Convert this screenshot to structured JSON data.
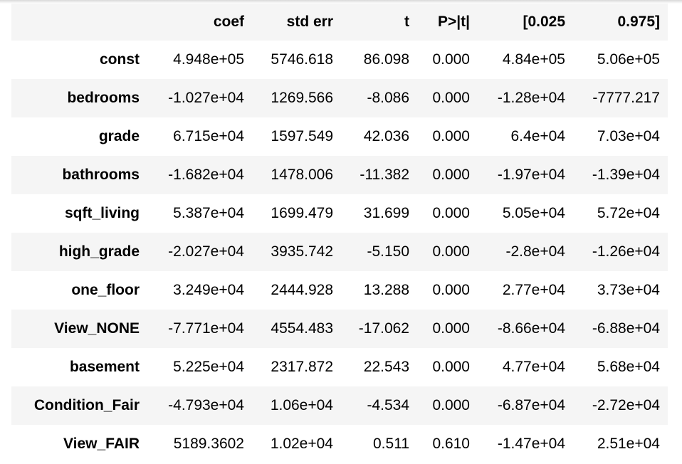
{
  "table": {
    "columns": [
      "",
      "coef",
      "std err",
      "t",
      "P>|t|",
      "[0.025",
      "0.975]"
    ],
    "rows": [
      {
        "name": "const",
        "values": [
          "4.948e+05",
          "5746.618",
          "86.098",
          "0.000",
          "4.84e+05",
          "5.06e+05"
        ]
      },
      {
        "name": "bedrooms",
        "values": [
          "-1.027e+04",
          "1269.566",
          "-8.086",
          "0.000",
          "-1.28e+04",
          "-7777.217"
        ]
      },
      {
        "name": "grade",
        "values": [
          "6.715e+04",
          "1597.549",
          "42.036",
          "0.000",
          "6.4e+04",
          "7.03e+04"
        ]
      },
      {
        "name": "bathrooms",
        "values": [
          "-1.682e+04",
          "1478.006",
          "-11.382",
          "0.000",
          "-1.97e+04",
          "-1.39e+04"
        ]
      },
      {
        "name": "sqft_living",
        "values": [
          "5.387e+04",
          "1699.479",
          "31.699",
          "0.000",
          "5.05e+04",
          "5.72e+04"
        ]
      },
      {
        "name": "high_grade",
        "values": [
          "-2.027e+04",
          "3935.742",
          "-5.150",
          "0.000",
          "-2.8e+04",
          "-1.26e+04"
        ]
      },
      {
        "name": "one_floor",
        "values": [
          "3.249e+04",
          "2444.928",
          "13.288",
          "0.000",
          "2.77e+04",
          "3.73e+04"
        ]
      },
      {
        "name": "View_NONE",
        "values": [
          "-7.771e+04",
          "4554.483",
          "-17.062",
          "0.000",
          "-8.66e+04",
          "-6.88e+04"
        ]
      },
      {
        "name": "basement",
        "values": [
          "5.225e+04",
          "2317.872",
          "22.543",
          "0.000",
          "4.77e+04",
          "5.68e+04"
        ]
      },
      {
        "name": "Condition_Fair",
        "values": [
          "-4.793e+04",
          "1.06e+04",
          "-4.534",
          "0.000",
          "-6.87e+04",
          "-2.72e+04"
        ]
      },
      {
        "name": "View_FAIR",
        "values": [
          "5189.3602",
          "1.02e+04",
          "0.511",
          "0.610",
          "-1.47e+04",
          "2.51e+04"
        ]
      }
    ]
  }
}
